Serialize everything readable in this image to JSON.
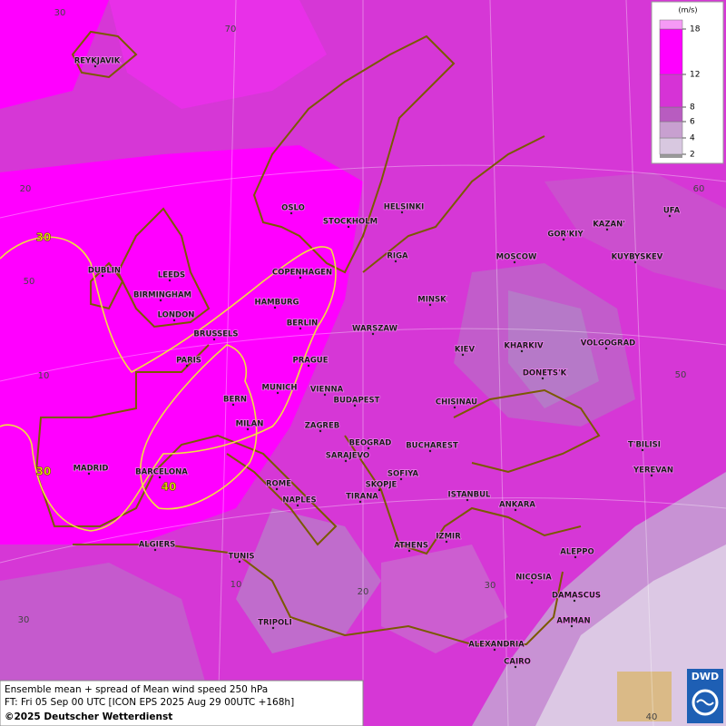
{
  "map": {
    "legend": {
      "unit": "(m/s)",
      "ticks": [
        2,
        4,
        6,
        8,
        12,
        18
      ],
      "colors": [
        "#9a9a9a",
        "#d8c8e0",
        "#c8a0d0",
        "#b85cc0",
        "#d633d6",
        "#ff00ff",
        "#f59af5"
      ]
    },
    "graticule_labels": [
      "30",
      "70",
      "20",
      "50",
      "10",
      "60",
      "50",
      "30",
      "10",
      "20",
      "30",
      "40"
    ],
    "contour_labels": [
      "30",
      "30",
      "40"
    ],
    "cities": [
      "REYKJAVIK",
      "OSLO",
      "STOCKHOLM",
      "HELSINKI",
      "DUBLIN",
      "LEEDS",
      "COPENHAGEN",
      "RIGA",
      "MOSCOW",
      "GOR'KIY",
      "KAZAN'",
      "UFA",
      "KUYBYSKEV",
      "BIRMINGHAM",
      "HAMBURG",
      "MINSK",
      "LONDON",
      "BERLIN",
      "WARSZAW",
      "BRUSSELS",
      "KIEV",
      "KHARKIV",
      "VOLGOGRAD",
      "PARIS",
      "PRAGUE",
      "DONETS'K",
      "MUNICH",
      "VIENNA",
      "BERN",
      "BUDAPEST",
      "CHISINAU",
      "MILAN",
      "ZAGREB",
      "BEOGRAD",
      "BUCHAREST",
      "T'BILISI",
      "MADRID",
      "BARCELONA",
      "SARAJEVO",
      "SOFIYA",
      "YEREVAN",
      "ROME",
      "SKOPJE",
      "TIRANA",
      "ISTANBUL",
      "NAPLES",
      "ANKARA",
      "IZMIR",
      "ALGIERS",
      "ATHENS",
      "ALEPPO",
      "TUNIS",
      "NICOSIA",
      "DAMASCUS",
      "TRIPOLI",
      "AMMAN",
      "ALEXANDRIA",
      "CAIRO"
    ],
    "caption": [
      "Ensemble mean + spread of Mean wind speed 250 hPa",
      "FT: Fri 05 Sep 00 UTC [ICON EPS 2025 Aug 29 00UTC +168h]",
      "©2025 Deutscher Wetterdienst"
    ],
    "logo": "DWD"
  }
}
